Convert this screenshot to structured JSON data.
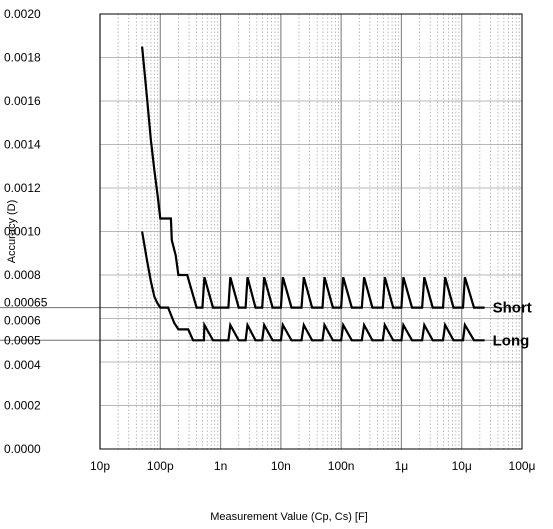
{
  "chart_data": {
    "type": "line",
    "title": "",
    "xlabel": "Measurement Value (Cp, Cs) [F]",
    "ylabel": "Accuracy (D)",
    "x_scale": "log",
    "xlim": [
      1e-11,
      0.0001
    ],
    "ylim": [
      0,
      0.002
    ],
    "grid": true,
    "legend": "inline labels at right end of lines",
    "x_ticks": [
      {
        "value": 1e-11,
        "label": "10p"
      },
      {
        "value": 1e-10,
        "label": "100p"
      },
      {
        "value": 1e-09,
        "label": "1n"
      },
      {
        "value": 1e-08,
        "label": "10n"
      },
      {
        "value": 1e-07,
        "label": "100n"
      },
      {
        "value": 1e-06,
        "label": "1μ"
      },
      {
        "value": 1e-05,
        "label": "10μ"
      },
      {
        "value": 0.0001,
        "label": "100μ"
      }
    ],
    "y_ticks": [
      {
        "value": 0.0,
        "label": "0.0000"
      },
      {
        "value": 0.0002,
        "label": "0.0002"
      },
      {
        "value": 0.0004,
        "label": "0.0004"
      },
      {
        "value": 0.0005,
        "label": "0.0005"
      },
      {
        "value": 0.0006,
        "label": "0.0006"
      },
      {
        "value": 0.00065,
        "label": "0.00065"
      },
      {
        "value": 0.0008,
        "label": "0.0008"
      },
      {
        "value": 0.001,
        "label": "0.0010"
      },
      {
        "value": 0.0012,
        "label": "0.0012"
      },
      {
        "value": 0.0014,
        "label": "0.0014"
      },
      {
        "value": 0.0016,
        "label": "0.0016"
      },
      {
        "value": 0.0018,
        "label": "0.0018"
      },
      {
        "value": 0.002,
        "label": "0.0020"
      }
    ],
    "reference_lines": [
      0.00065,
      0.0005
    ],
    "series": [
      {
        "name": "Short",
        "points": [
          [
            5e-11,
            0.00185
          ],
          [
            6e-11,
            0.00162
          ],
          [
            7e-11,
            0.00142
          ],
          [
            8e-11,
            0.00128
          ],
          [
            9e-11,
            0.00117
          ],
          [
            1e-10,
            0.00106
          ],
          [
            1.5e-10,
            0.00106
          ],
          [
            1.55e-10,
            0.00096
          ],
          [
            1.8e-10,
            0.00089
          ],
          [
            2e-10,
            0.0008
          ],
          [
            2.8e-10,
            0.0008
          ],
          [
            4e-10,
            0.00065
          ],
          [
            5e-10,
            0.00065
          ],
          [
            5.4e-10,
            0.00079
          ],
          [
            7.5e-10,
            0.00065
          ],
          [
            1.35e-09,
            0.00065
          ],
          [
            1.45e-09,
            0.00079
          ],
          [
            2e-09,
            0.00065
          ],
          [
            2.6e-09,
            0.00065
          ],
          [
            2.8e-09,
            0.00079
          ],
          [
            3.8e-09,
            0.00065
          ],
          [
            4.9e-09,
            0.00065
          ],
          [
            5.3e-09,
            0.00079
          ],
          [
            7.3e-09,
            0.00065
          ],
          [
            1e-08,
            0.00065
          ],
          [
            1.08e-08,
            0.00079
          ],
          [
            1.5e-08,
            0.00065
          ],
          [
            2.2e-08,
            0.00065
          ],
          [
            2.4e-08,
            0.00079
          ],
          [
            3.3e-08,
            0.00065
          ],
          [
            4.9e-08,
            0.00065
          ],
          [
            5.3e-08,
            0.00079
          ],
          [
            7.3e-08,
            0.00065
          ],
          [
            1e-07,
            0.00065
          ],
          [
            1.08e-07,
            0.00079
          ],
          [
            1.5e-07,
            0.00065
          ],
          [
            2.2e-07,
            0.00065
          ],
          [
            2.4e-07,
            0.00079
          ],
          [
            3.3e-07,
            0.00065
          ],
          [
            4.9e-07,
            0.00065
          ],
          [
            5.3e-07,
            0.00079
          ],
          [
            7.3e-07,
            0.00065
          ],
          [
            1e-06,
            0.00065
          ],
          [
            1.08e-06,
            0.00079
          ],
          [
            1.5e-06,
            0.00065
          ],
          [
            2.2e-06,
            0.00065
          ],
          [
            2.4e-06,
            0.00079
          ],
          [
            3.3e-06,
            0.00065
          ],
          [
            4.9e-06,
            0.00065
          ],
          [
            5.3e-06,
            0.00079
          ],
          [
            7.3e-06,
            0.00065
          ],
          [
            1.05e-05,
            0.00065
          ],
          [
            1.13e-05,
            0.00079
          ],
          [
            1.6e-05,
            0.00065
          ],
          [
            2.4e-05,
            0.00065
          ]
        ]
      },
      {
        "name": "Long",
        "points": [
          [
            5e-11,
            0.001
          ],
          [
            6e-11,
            0.00087
          ],
          [
            7e-11,
            0.00077
          ],
          [
            8e-11,
            0.0007
          ],
          [
            9e-11,
            0.00067
          ],
          [
            1e-10,
            0.00065
          ],
          [
            1.35e-10,
            0.00065
          ],
          [
            1.7e-10,
            0.00058
          ],
          [
            2e-10,
            0.00055
          ],
          [
            2.9e-10,
            0.00055
          ],
          [
            3.5e-10,
            0.0005
          ],
          [
            5.3e-10,
            0.0005
          ],
          [
            5.4e-10,
            0.00057
          ],
          [
            7.5e-10,
            0.0005
          ],
          [
            1.35e-09,
            0.0005
          ],
          [
            1.45e-09,
            0.00057
          ],
          [
            2e-09,
            0.0005
          ],
          [
            2.6e-09,
            0.0005
          ],
          [
            2.8e-09,
            0.00057
          ],
          [
            3.8e-09,
            0.0005
          ],
          [
            4.9e-09,
            0.0005
          ],
          [
            5.3e-09,
            0.00057
          ],
          [
            7.3e-09,
            0.0005
          ],
          [
            1e-08,
            0.0005
          ],
          [
            1.08e-08,
            0.00057
          ],
          [
            1.5e-08,
            0.0005
          ],
          [
            2.2e-08,
            0.0005
          ],
          [
            2.4e-08,
            0.00057
          ],
          [
            3.3e-08,
            0.0005
          ],
          [
            4.9e-08,
            0.0005
          ],
          [
            5.3e-08,
            0.00057
          ],
          [
            7.3e-08,
            0.0005
          ],
          [
            1e-07,
            0.0005
          ],
          [
            1.08e-07,
            0.00057
          ],
          [
            1.5e-07,
            0.0005
          ],
          [
            2.2e-07,
            0.0005
          ],
          [
            2.4e-07,
            0.00057
          ],
          [
            3.3e-07,
            0.0005
          ],
          [
            4.9e-07,
            0.0005
          ],
          [
            5.3e-07,
            0.00057
          ],
          [
            7.3e-07,
            0.0005
          ],
          [
            1e-06,
            0.0005
          ],
          [
            1.08e-06,
            0.00057
          ],
          [
            1.5e-06,
            0.0005
          ],
          [
            2.2e-06,
            0.0005
          ],
          [
            2.4e-06,
            0.00057
          ],
          [
            3.3e-06,
            0.0005
          ],
          [
            4.9e-06,
            0.0005
          ],
          [
            5.3e-06,
            0.00057
          ],
          [
            7.3e-06,
            0.0005
          ],
          [
            1.05e-05,
            0.0005
          ],
          [
            1.13e-05,
            0.00057
          ],
          [
            1.6e-05,
            0.0005
          ],
          [
            2.4e-05,
            0.0005
          ]
        ]
      }
    ],
    "colors": {
      "line": "#000000",
      "grid_major": "#8c8c8c",
      "grid_minor": "#a0a0a0",
      "reference": "#707070"
    }
  }
}
